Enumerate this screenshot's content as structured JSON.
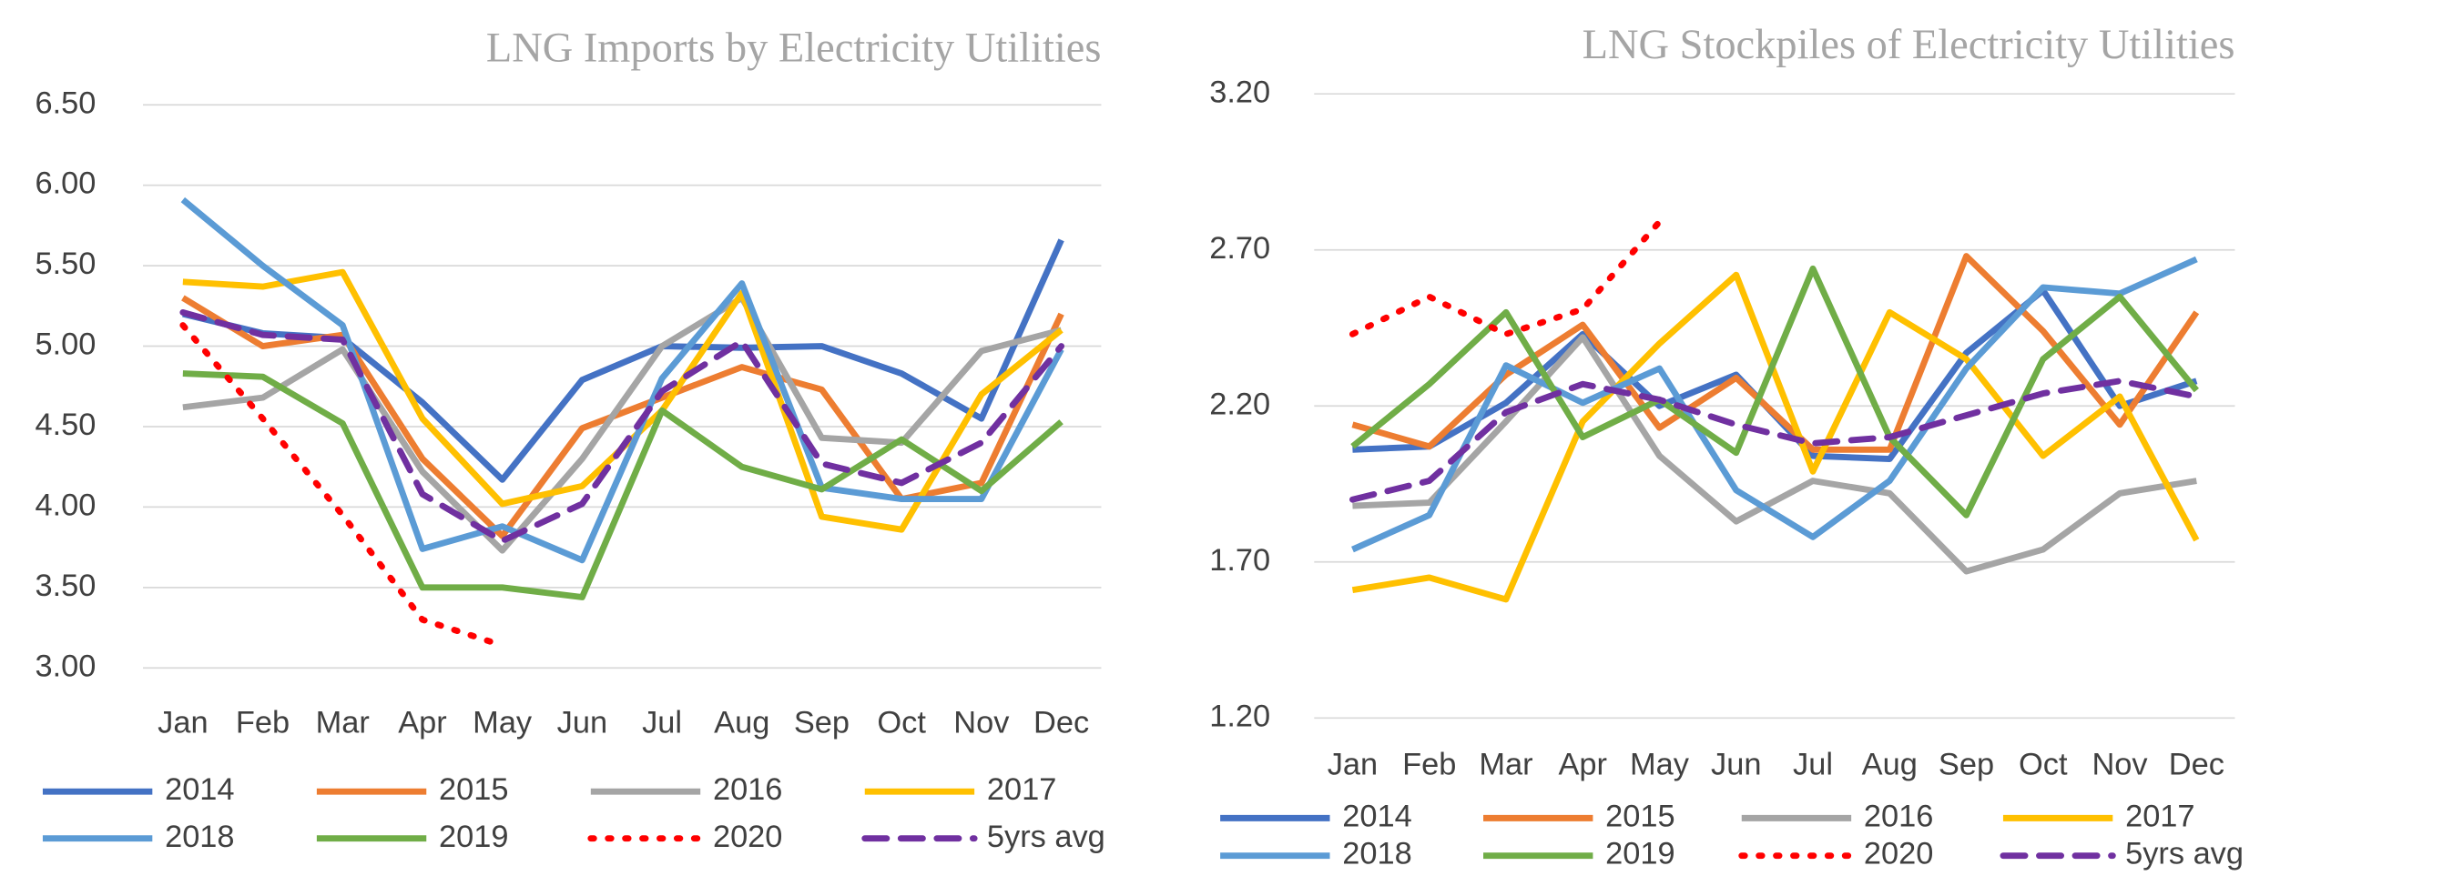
{
  "chart_data": [
    {
      "type": "line",
      "title": "LNG Imports by Electricity Utilities",
      "categories": [
        "Jan",
        "Feb",
        "Mar",
        "Apr",
        "May",
        "Jun",
        "Jul",
        "Aug",
        "Sep",
        "Oct",
        "Nov",
        "Dec"
      ],
      "ylim": [
        3,
        6.5
      ],
      "yticks": [
        {
          "value": 3,
          "label": "3.00"
        },
        {
          "value": 3.5,
          "label": "3.50"
        },
        {
          "value": 4,
          "label": "4.00"
        },
        {
          "value": 4.5,
          "label": "4.50"
        },
        {
          "value": 5,
          "label": "5.00"
        },
        {
          "value": 5.5,
          "label": "5.50"
        },
        {
          "value": 6,
          "label": "6.00"
        },
        {
          "value": 6.5,
          "label": "6.50"
        }
      ],
      "grid": true,
      "legend": "bottom",
      "series": [
        {
          "name": "2014",
          "color": "#4472c4",
          "values": [
            5.2,
            5.08,
            5.05,
            4.65,
            4.17,
            4.79,
            5.0,
            4.99,
            5.0,
            4.83,
            4.55,
            5.66
          ]
        },
        {
          "name": "2015",
          "color": "#ed7d31",
          "values": [
            5.3,
            5.0,
            5.07,
            4.3,
            3.82,
            4.49,
            4.68,
            4.87,
            4.73,
            4.05,
            4.15,
            5.2
          ]
        },
        {
          "name": "2016",
          "color": "#a5a5a5",
          "values": [
            4.62,
            4.68,
            4.98,
            4.22,
            3.73,
            4.3,
            5.0,
            5.3,
            4.43,
            4.4,
            4.97,
            5.1
          ]
        },
        {
          "name": "2017",
          "color": "#ffc000",
          "values": [
            5.4,
            5.37,
            5.46,
            4.55,
            4.02,
            4.13,
            4.6,
            5.33,
            3.94,
            3.86,
            4.7,
            5.1
          ]
        },
        {
          "name": "2018",
          "color": "#5b9bd5",
          "values": [
            5.91,
            5.5,
            5.13,
            3.74,
            3.88,
            3.67,
            4.8,
            5.39,
            4.12,
            4.05,
            4.05,
            4.98
          ]
        },
        {
          "name": "2019",
          "color": "#70ad47",
          "values": [
            4.83,
            4.81,
            4.52,
            3.5,
            3.5,
            3.44,
            4.6,
            4.25,
            4.11,
            4.42,
            4.1,
            4.53
          ]
        },
        {
          "name": "2020",
          "color": "#ff0000",
          "line_style": "dotted",
          "values": [
            5.13,
            4.55,
            3.95,
            3.3,
            3.14,
            null,
            null,
            null,
            null,
            null,
            null,
            null
          ]
        },
        {
          "name": "5yrs avg",
          "color": "#7030a0",
          "line_style": "dashed",
          "values": [
            5.21,
            5.07,
            5.04,
            4.08,
            3.79,
            4.02,
            4.72,
            5.03,
            4.27,
            4.15,
            4.4,
            5.0
          ]
        }
      ]
    },
    {
      "type": "line",
      "title": "LNG Stockpiles of Electricity Utilities",
      "categories": [
        "Jan",
        "Feb",
        "Mar",
        "Apr",
        "May",
        "Jun",
        "Jul",
        "Aug",
        "Sep",
        "Oct",
        "Nov",
        "Dec"
      ],
      "ylim": [
        1.2,
        3.2
      ],
      "yticks": [
        {
          "value": 1.2,
          "label": "1.20"
        },
        {
          "value": 1.7,
          "label": "1.70"
        },
        {
          "value": 2.2,
          "label": "2.20"
        },
        {
          "value": 2.7,
          "label": "2.70"
        },
        {
          "value": 3.2,
          "label": "3.20"
        }
      ],
      "grid": true,
      "legend": "bottom",
      "series": [
        {
          "name": "2014",
          "color": "#4472c4",
          "values": [
            2.06,
            2.07,
            2.21,
            2.43,
            2.2,
            2.3,
            2.04,
            2.03,
            2.37,
            2.57,
            2.2,
            2.28
          ]
        },
        {
          "name": "2015",
          "color": "#ed7d31",
          "values": [
            2.14,
            2.07,
            2.3,
            2.46,
            2.13,
            2.29,
            2.06,
            2.06,
            2.68,
            2.44,
            2.14,
            2.5
          ]
        },
        {
          "name": "2016",
          "color": "#a5a5a5",
          "values": [
            1.88,
            1.89,
            2.15,
            2.42,
            2.04,
            1.83,
            1.96,
            1.92,
            1.67,
            1.74,
            1.92,
            1.96
          ]
        },
        {
          "name": "2017",
          "color": "#ffc000",
          "values": [
            1.61,
            1.65,
            1.58,
            2.15,
            2.4,
            2.62,
            1.99,
            2.5,
            2.35,
            2.04,
            2.23,
            1.77
          ]
        },
        {
          "name": "2018",
          "color": "#5b9bd5",
          "values": [
            1.74,
            1.85,
            2.33,
            2.21,
            2.32,
            1.93,
            1.78,
            1.96,
            2.32,
            2.58,
            2.56,
            2.67
          ]
        },
        {
          "name": "2019",
          "color": "#70ad47",
          "values": [
            2.07,
            2.27,
            2.5,
            2.1,
            2.22,
            2.05,
            2.64,
            2.1,
            1.85,
            2.35,
            2.55,
            2.25
          ]
        },
        {
          "name": "2020",
          "color": "#ff0000",
          "line_style": "dotted",
          "values": [
            2.43,
            2.55,
            2.43,
            2.51,
            2.79,
            null,
            null,
            null,
            null,
            null,
            null,
            null
          ]
        },
        {
          "name": "5yrs avg",
          "color": "#7030a0",
          "line_style": "dashed",
          "values": [
            1.9,
            1.96,
            2.18,
            2.27,
            2.22,
            2.14,
            2.08,
            2.1,
            2.17,
            2.24,
            2.28,
            2.23
          ]
        }
      ]
    }
  ]
}
